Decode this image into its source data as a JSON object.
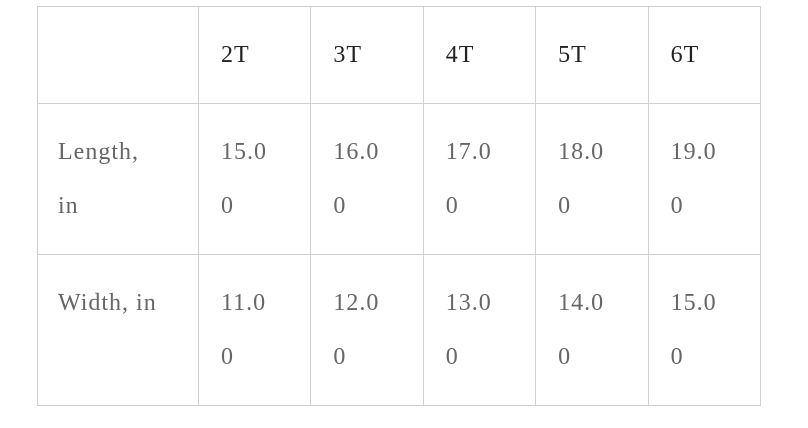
{
  "table": {
    "columns": [
      "2T",
      "3T",
      "4T",
      "5T",
      "6T"
    ],
    "rows": [
      {
        "label": "Length, in",
        "values": [
          "15.00",
          "16.00",
          "17.00",
          "18.00",
          "19.00"
        ]
      },
      {
        "label": "Width, in",
        "values": [
          "11.00",
          "12.00",
          "13.00",
          "14.00",
          "15.00"
        ]
      }
    ]
  }
}
